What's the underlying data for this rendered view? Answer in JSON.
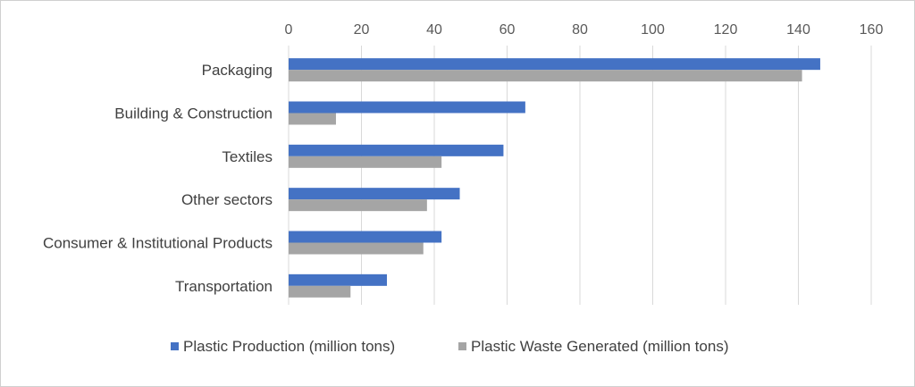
{
  "chart_data": {
    "type": "bar",
    "orientation": "horizontal",
    "categories": [
      "Packaging",
      "Building & Construction",
      "Textiles",
      "Other sectors",
      "Consumer & Institutional Products",
      "Transportation"
    ],
    "series": [
      {
        "name": "Plastic Production (million tons)",
        "color": "#4472C4",
        "values": [
          146,
          65,
          59,
          47,
          42,
          27
        ]
      },
      {
        "name": "Plastic Waste Generated (million tons)",
        "color": "#A5A5A5",
        "values": [
          141,
          13,
          42,
          38,
          37,
          17
        ]
      }
    ],
    "xlim": [
      0,
      160
    ],
    "x_ticks": [
      0,
      20,
      40,
      60,
      80,
      100,
      120,
      140,
      160
    ],
    "x_tick_labels": [
      "0",
      "20",
      "40",
      "60",
      "80",
      "100",
      "120",
      "140",
      "160"
    ],
    "x_axis_position": "top",
    "grid": true,
    "grid_color": "#d9d9d9",
    "legend_position": "bottom",
    "title": "",
    "xlabel": "",
    "ylabel": ""
  }
}
